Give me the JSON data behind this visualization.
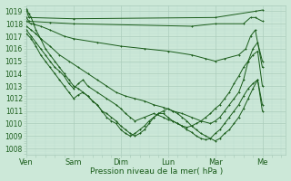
{
  "title": "",
  "xlabel": "Pression niveau de la mer( hPa )",
  "bg_color": "#cce8d8",
  "grid_major_color": "#aaccbb",
  "grid_minor_color": "#bbddd0",
  "line_color": "#1a5c1a",
  "ylim": [
    1007.5,
    1019.5
  ],
  "xlim_days": 5.5,
  "yticks": [
    1008,
    1009,
    1010,
    1011,
    1012,
    1013,
    1014,
    1015,
    1016,
    1017,
    1018,
    1019
  ],
  "xtick_labels": [
    "Ven",
    "Sam",
    "Dim",
    "Lun",
    "Mar",
    "Me"
  ],
  "xtick_positions": [
    0,
    1,
    2,
    3,
    4,
    5
  ],
  "lines": [
    {
      "x": [
        0.0,
        0.05,
        1.0,
        4.0,
        4.85,
        5.0
      ],
      "y": [
        1019.1,
        1018.5,
        1018.4,
        1018.5,
        1019.0,
        1019.1
      ]
    },
    {
      "x": [
        0.0,
        0.05,
        0.5,
        1.0,
        3.5,
        4.0,
        4.6,
        4.75,
        4.85,
        5.0
      ],
      "y": [
        1018.5,
        1018.2,
        1018.1,
        1018.0,
        1017.8,
        1018.0,
        1018.0,
        1018.5,
        1018.5,
        1018.2
      ]
    },
    {
      "x": [
        0.0,
        0.1,
        0.3,
        0.5,
        0.8,
        1.0,
        1.5,
        2.0,
        2.5,
        3.0,
        3.5,
        3.8,
        4.0,
        4.2,
        4.5,
        4.65,
        4.75,
        4.85,
        5.0
      ],
      "y": [
        1018.2,
        1018.0,
        1017.8,
        1017.5,
        1017.0,
        1016.8,
        1016.5,
        1016.2,
        1016.0,
        1015.8,
        1015.5,
        1015.2,
        1015.0,
        1015.2,
        1015.5,
        1016.0,
        1017.0,
        1017.5,
        1014.5
      ]
    },
    {
      "x": [
        0.0,
        0.1,
        0.2,
        0.3,
        0.5,
        0.7,
        0.9,
        1.1,
        1.3,
        1.5,
        1.7,
        1.9,
        2.1,
        2.3,
        2.5,
        2.7,
        2.9,
        3.1,
        3.3,
        3.5,
        3.7,
        3.9,
        4.0,
        4.1,
        4.2,
        4.3,
        4.4,
        4.5,
        4.6,
        4.7,
        4.8,
        4.9,
        5.0
      ],
      "y": [
        1017.8,
        1017.5,
        1017.2,
        1016.8,
        1016.2,
        1015.5,
        1015.0,
        1014.5,
        1014.0,
        1013.5,
        1013.0,
        1012.5,
        1012.2,
        1012.0,
        1011.8,
        1011.5,
        1011.3,
        1011.0,
        1010.8,
        1010.5,
        1010.2,
        1010.0,
        1010.2,
        1010.5,
        1011.0,
        1011.5,
        1012.0,
        1012.5,
        1013.5,
        1015.0,
        1016.0,
        1016.5,
        1015.0
      ]
    },
    {
      "x": [
        0.0,
        0.1,
        0.2,
        0.3,
        0.4,
        0.5,
        0.6,
        0.7,
        0.8,
        0.9,
        1.0,
        1.1,
        1.2,
        1.3,
        1.5,
        1.7,
        1.9,
        2.0,
        2.1,
        2.2,
        2.3,
        2.5,
        2.7,
        2.9,
        3.0,
        3.1,
        3.2,
        3.3,
        3.4,
        3.5,
        3.6,
        3.7,
        3.8,
        3.9,
        4.0,
        4.1,
        4.2,
        4.3,
        4.4,
        4.5,
        4.6,
        4.7,
        4.8,
        4.9,
        5.0
      ],
      "y": [
        1017.5,
        1017.0,
        1016.5,
        1016.0,
        1015.5,
        1015.0,
        1014.5,
        1014.2,
        1013.8,
        1013.2,
        1012.8,
        1013.2,
        1013.5,
        1013.0,
        1012.5,
        1012.0,
        1011.5,
        1011.2,
        1010.8,
        1010.5,
        1010.2,
        1010.5,
        1010.8,
        1010.5,
        1010.3,
        1010.2,
        1010.0,
        1009.8,
        1009.7,
        1009.8,
        1010.0,
        1010.2,
        1010.5,
        1010.8,
        1011.2,
        1011.5,
        1012.0,
        1012.5,
        1013.2,
        1013.8,
        1014.5,
        1015.0,
        1015.5,
        1015.8,
        1013.0
      ]
    },
    {
      "x": [
        0.0,
        0.1,
        0.2,
        0.3,
        0.4,
        0.5,
        0.6,
        0.7,
        0.8,
        0.9,
        1.0,
        1.1,
        1.2,
        1.3,
        1.4,
        1.5,
        1.6,
        1.7,
        1.8,
        1.9,
        2.0,
        2.1,
        2.2,
        2.3,
        2.4,
        2.5,
        2.6,
        2.7,
        2.8,
        2.9,
        3.0,
        3.1,
        3.2,
        3.3,
        3.4,
        3.5,
        3.6,
        3.7,
        3.8,
        3.9,
        4.0,
        4.1,
        4.2,
        4.3,
        4.4,
        4.5,
        4.6,
        4.7,
        4.8,
        4.9,
        5.0
      ],
      "y": [
        1017.2,
        1016.8,
        1016.2,
        1015.5,
        1015.0,
        1014.5,
        1014.0,
        1013.5,
        1013.0,
        1012.5,
        1012.0,
        1012.3,
        1012.5,
        1012.2,
        1011.8,
        1011.5,
        1011.0,
        1010.5,
        1010.2,
        1010.0,
        1009.5,
        1009.2,
        1009.0,
        1009.2,
        1009.5,
        1009.8,
        1010.2,
        1010.5,
        1010.8,
        1010.8,
        1010.5,
        1010.2,
        1010.0,
        1009.8,
        1009.5,
        1009.3,
        1009.0,
        1008.8,
        1008.7,
        1008.8,
        1009.2,
        1009.5,
        1010.0,
        1010.5,
        1011.0,
        1011.5,
        1012.2,
        1012.8,
        1013.2,
        1013.5,
        1011.0
      ]
    },
    {
      "x": [
        0.0,
        0.05,
        0.1,
        0.15,
        0.2,
        0.3,
        0.4,
        0.5,
        0.6,
        0.7,
        0.8,
        0.9,
        1.0,
        1.1,
        1.2,
        1.3,
        1.4,
        1.5,
        1.6,
        1.7,
        1.8,
        1.9,
        2.0,
        2.1,
        2.2,
        2.3,
        2.4,
        2.5,
        2.6,
        2.7,
        2.8,
        2.9,
        3.0,
        3.1,
        3.2,
        3.3,
        3.4,
        3.5,
        3.6,
        3.7,
        3.8,
        3.9,
        4.0,
        4.1,
        4.2,
        4.3,
        4.4,
        4.5,
        4.6,
        4.7,
        4.8,
        4.9,
        5.0
      ],
      "y": [
        1019.2,
        1018.8,
        1018.5,
        1018.0,
        1017.5,
        1016.8,
        1016.0,
        1015.5,
        1015.0,
        1014.5,
        1014.0,
        1013.5,
        1013.0,
        1012.8,
        1012.5,
        1012.2,
        1011.8,
        1011.5,
        1011.0,
        1010.8,
        1010.5,
        1010.2,
        1009.8,
        1009.5,
        1009.2,
        1009.0,
        1009.2,
        1009.5,
        1010.0,
        1010.5,
        1010.8,
        1011.0,
        1011.2,
        1011.0,
        1010.8,
        1010.5,
        1010.2,
        1009.8,
        1009.5,
        1009.2,
        1009.0,
        1008.8,
        1008.6,
        1008.8,
        1009.2,
        1009.5,
        1010.0,
        1010.5,
        1011.2,
        1012.0,
        1012.8,
        1013.5,
        1011.5
      ]
    }
  ]
}
